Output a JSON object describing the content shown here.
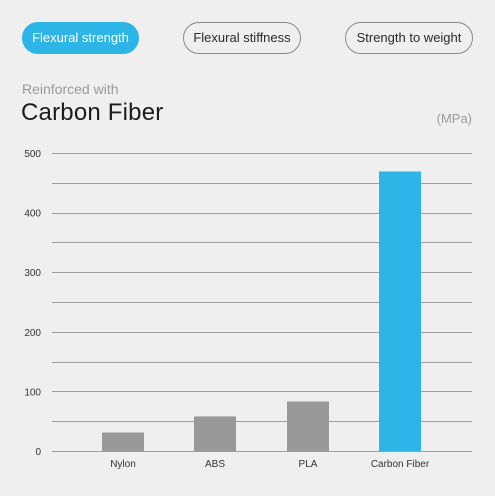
{
  "tabs": [
    {
      "label": "Flexural strength",
      "active": true
    },
    {
      "label": "Flexural stiffness",
      "active": false
    },
    {
      "label": "Strength to weight",
      "active": false
    }
  ],
  "header": {
    "subtitle": "Reinforced with",
    "title": "Carbon Fiber",
    "unit": "(MPa)"
  },
  "colors": {
    "accent": "#2eb5e8",
    "bar_default": "#999999",
    "gridline": "#9e9e9e",
    "background": "#efefef"
  },
  "chart_data": {
    "type": "bar",
    "title": "Carbon Fiber",
    "subtitle": "Reinforced with",
    "ylabel": "(MPa)",
    "xlabel": "",
    "categories": [
      "Nylon",
      "ABS",
      "PLA",
      "Carbon Fiber"
    ],
    "values": [
      31,
      58,
      83,
      469
    ],
    "highlight": "Carbon Fiber",
    "ylim": [
      0,
      500
    ],
    "yticks": [
      0,
      100,
      200,
      300,
      400,
      500
    ],
    "grid": true,
    "legend": "none"
  }
}
